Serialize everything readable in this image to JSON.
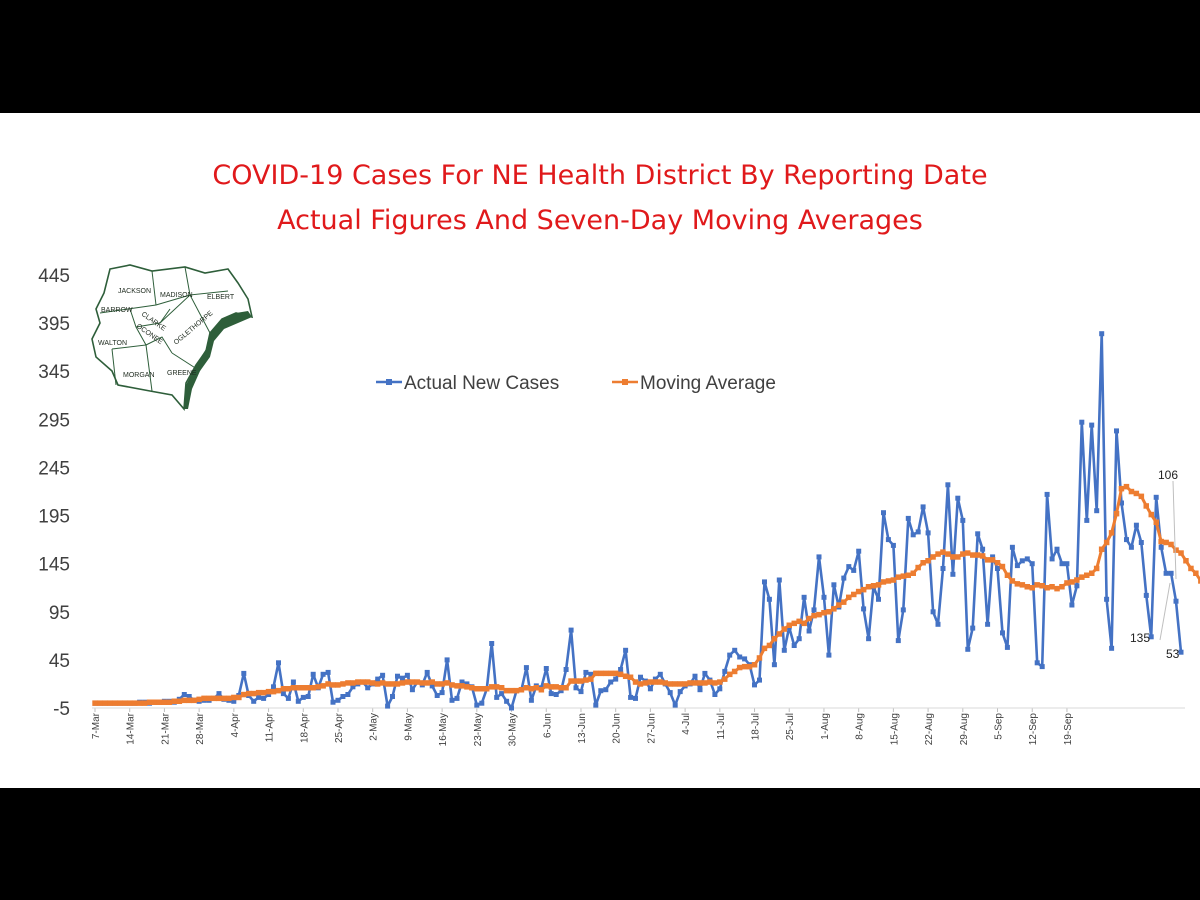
{
  "chart_data": {
    "type": "line",
    "title": "COVID-19 Cases For NE Health District By Reporting Date",
    "subtitle": "Actual Figures And Seven-Day Moving Averages",
    "xlabel": "",
    "ylabel": "",
    "ylim": [
      -5,
      445
    ],
    "yticks": [
      "445",
      "395",
      "345",
      "295",
      "245",
      "195",
      "145",
      "95",
      "45",
      "-5"
    ],
    "xticks": [
      "7-Mar",
      "14-Mar",
      "21-Mar",
      "28-Mar",
      "4-Apr",
      "11-Apr",
      "18-Apr",
      "25-Apr",
      "2-May",
      "9-May",
      "16-May",
      "23-May",
      "30-May",
      "6-Jun",
      "13-Jun",
      "20-Jun",
      "27-Jun",
      "4-Jul",
      "11-Jul",
      "18-Jul",
      "25-Jul",
      "1-Aug",
      "8-Aug",
      "15-Aug",
      "22-Aug",
      "29-Aug",
      "5-Sep",
      "12-Sep",
      "19-Sep"
    ],
    "legend_position": "top-center",
    "series": [
      {
        "name": "Actual New Cases",
        "color": "#4472c4",
        "values": [
          0,
          0,
          0,
          0,
          0,
          0,
          0,
          0,
          0,
          1,
          1,
          0,
          1,
          1,
          2,
          2,
          1,
          4,
          9,
          7,
          3,
          2,
          3,
          3,
          5,
          10,
          4,
          3,
          2,
          8,
          31,
          8,
          2,
          6,
          5,
          9,
          17,
          42,
          10,
          5,
          22,
          2,
          6,
          7,
          30,
          16,
          30,
          32,
          1,
          3,
          7,
          9,
          17,
          20,
          22,
          16,
          20,
          25,
          29,
          -3,
          7,
          28,
          26,
          29,
          14,
          22,
          19,
          32,
          18,
          8,
          11,
          45,
          3,
          5,
          22,
          20,
          17,
          -2,
          0,
          15,
          62,
          6,
          10,
          2,
          -5,
          13,
          14,
          37,
          3,
          18,
          16,
          36,
          10,
          9,
          13,
          35,
          76,
          16,
          12,
          32,
          30,
          -2,
          13,
          14,
          22,
          25,
          35,
          55,
          6,
          5,
          27,
          23,
          15,
          25,
          30,
          20,
          11,
          -2,
          12,
          18,
          20,
          28,
          14,
          31,
          24,
          9,
          15,
          33,
          50,
          55,
          48,
          46,
          40,
          19,
          24,
          126,
          108,
          40,
          128,
          55,
          79,
          60,
          67,
          110,
          75,
          97,
          152,
          110,
          50,
          123,
          100,
          130,
          142,
          138,
          158,
          98,
          67,
          121,
          108,
          198,
          170,
          164,
          65,
          97,
          192,
          175,
          178,
          204,
          177,
          95,
          82,
          140,
          227,
          134,
          213,
          190,
          56,
          78,
          176,
          160,
          82,
          152,
          140,
          73,
          58,
          162,
          143,
          148,
          150,
          145,
          42,
          38,
          217,
          150,
          160,
          145,
          145,
          102,
          122,
          292,
          190,
          289,
          200,
          384,
          108,
          57,
          283,
          208,
          170,
          162,
          185,
          167,
          112,
          69,
          214,
          162,
          135,
          135,
          106,
          53
        ]
      },
      {
        "name": "Moving Average",
        "color": "#ed7d31",
        "values": [
          0,
          0,
          0,
          0,
          0,
          0,
          0,
          0,
          0,
          0,
          0,
          1,
          1,
          1,
          1,
          1,
          2,
          2,
          3,
          3,
          3,
          4,
          5,
          5,
          5,
          5,
          5,
          5,
          6,
          6,
          9,
          10,
          10,
          11,
          11,
          12,
          12,
          13,
          15,
          15,
          16,
          16,
          16,
          16,
          16,
          17,
          18,
          20,
          19,
          19,
          20,
          21,
          21,
          22,
          22,
          22,
          21,
          20,
          21,
          20,
          20,
          20,
          21,
          22,
          22,
          22,
          21,
          21,
          22,
          20,
          20,
          21,
          19,
          18,
          18,
          17,
          16,
          15,
          15,
          15,
          17,
          17,
          16,
          13,
          13,
          13,
          14,
          16,
          15,
          16,
          14,
          18,
          17,
          17,
          16,
          16,
          23,
          23,
          23,
          24,
          25,
          31,
          31,
          31,
          31,
          31,
          30,
          28,
          27,
          22,
          20,
          21,
          22,
          22,
          22,
          21,
          20,
          20,
          20,
          20,
          21,
          21,
          21,
          21,
          22,
          21,
          22,
          25,
          30,
          33,
          37,
          38,
          38,
          40,
          47,
          57,
          60,
          67,
          72,
          77,
          81,
          83,
          85,
          83,
          88,
          91,
          92,
          94,
          95,
          98,
          102,
          105,
          110,
          113,
          116,
          118,
          121,
          122,
          123,
          126,
          127,
          128,
          131,
          132,
          133,
          135,
          141,
          146,
          148,
          152,
          155,
          157,
          155,
          152,
          152,
          155,
          156,
          154,
          154,
          153,
          149,
          149,
          146,
          142,
          133,
          127,
          124,
          123,
          121,
          120,
          123,
          122,
          120,
          121,
          119,
          121,
          125,
          126,
          128,
          131,
          133,
          135,
          140,
          160,
          167,
          177,
          197,
          223,
          225,
          220,
          218,
          215,
          205,
          196,
          188,
          168,
          167,
          165,
          159,
          156,
          148,
          140,
          135,
          127,
          121
        ]
      }
    ],
    "annotations": [
      {
        "text": "106"
      },
      {
        "text": "135"
      },
      {
        "text": "53"
      }
    ]
  },
  "inset_map": {
    "counties": [
      "JACKSON",
      "MADISON",
      "ELBERT",
      "BARROW",
      "CLARKE",
      "OCONEE",
      "OGLETHORPE",
      "WALTON",
      "MORGAN",
      "GREENE"
    ],
    "color": "#2e5e3a"
  }
}
